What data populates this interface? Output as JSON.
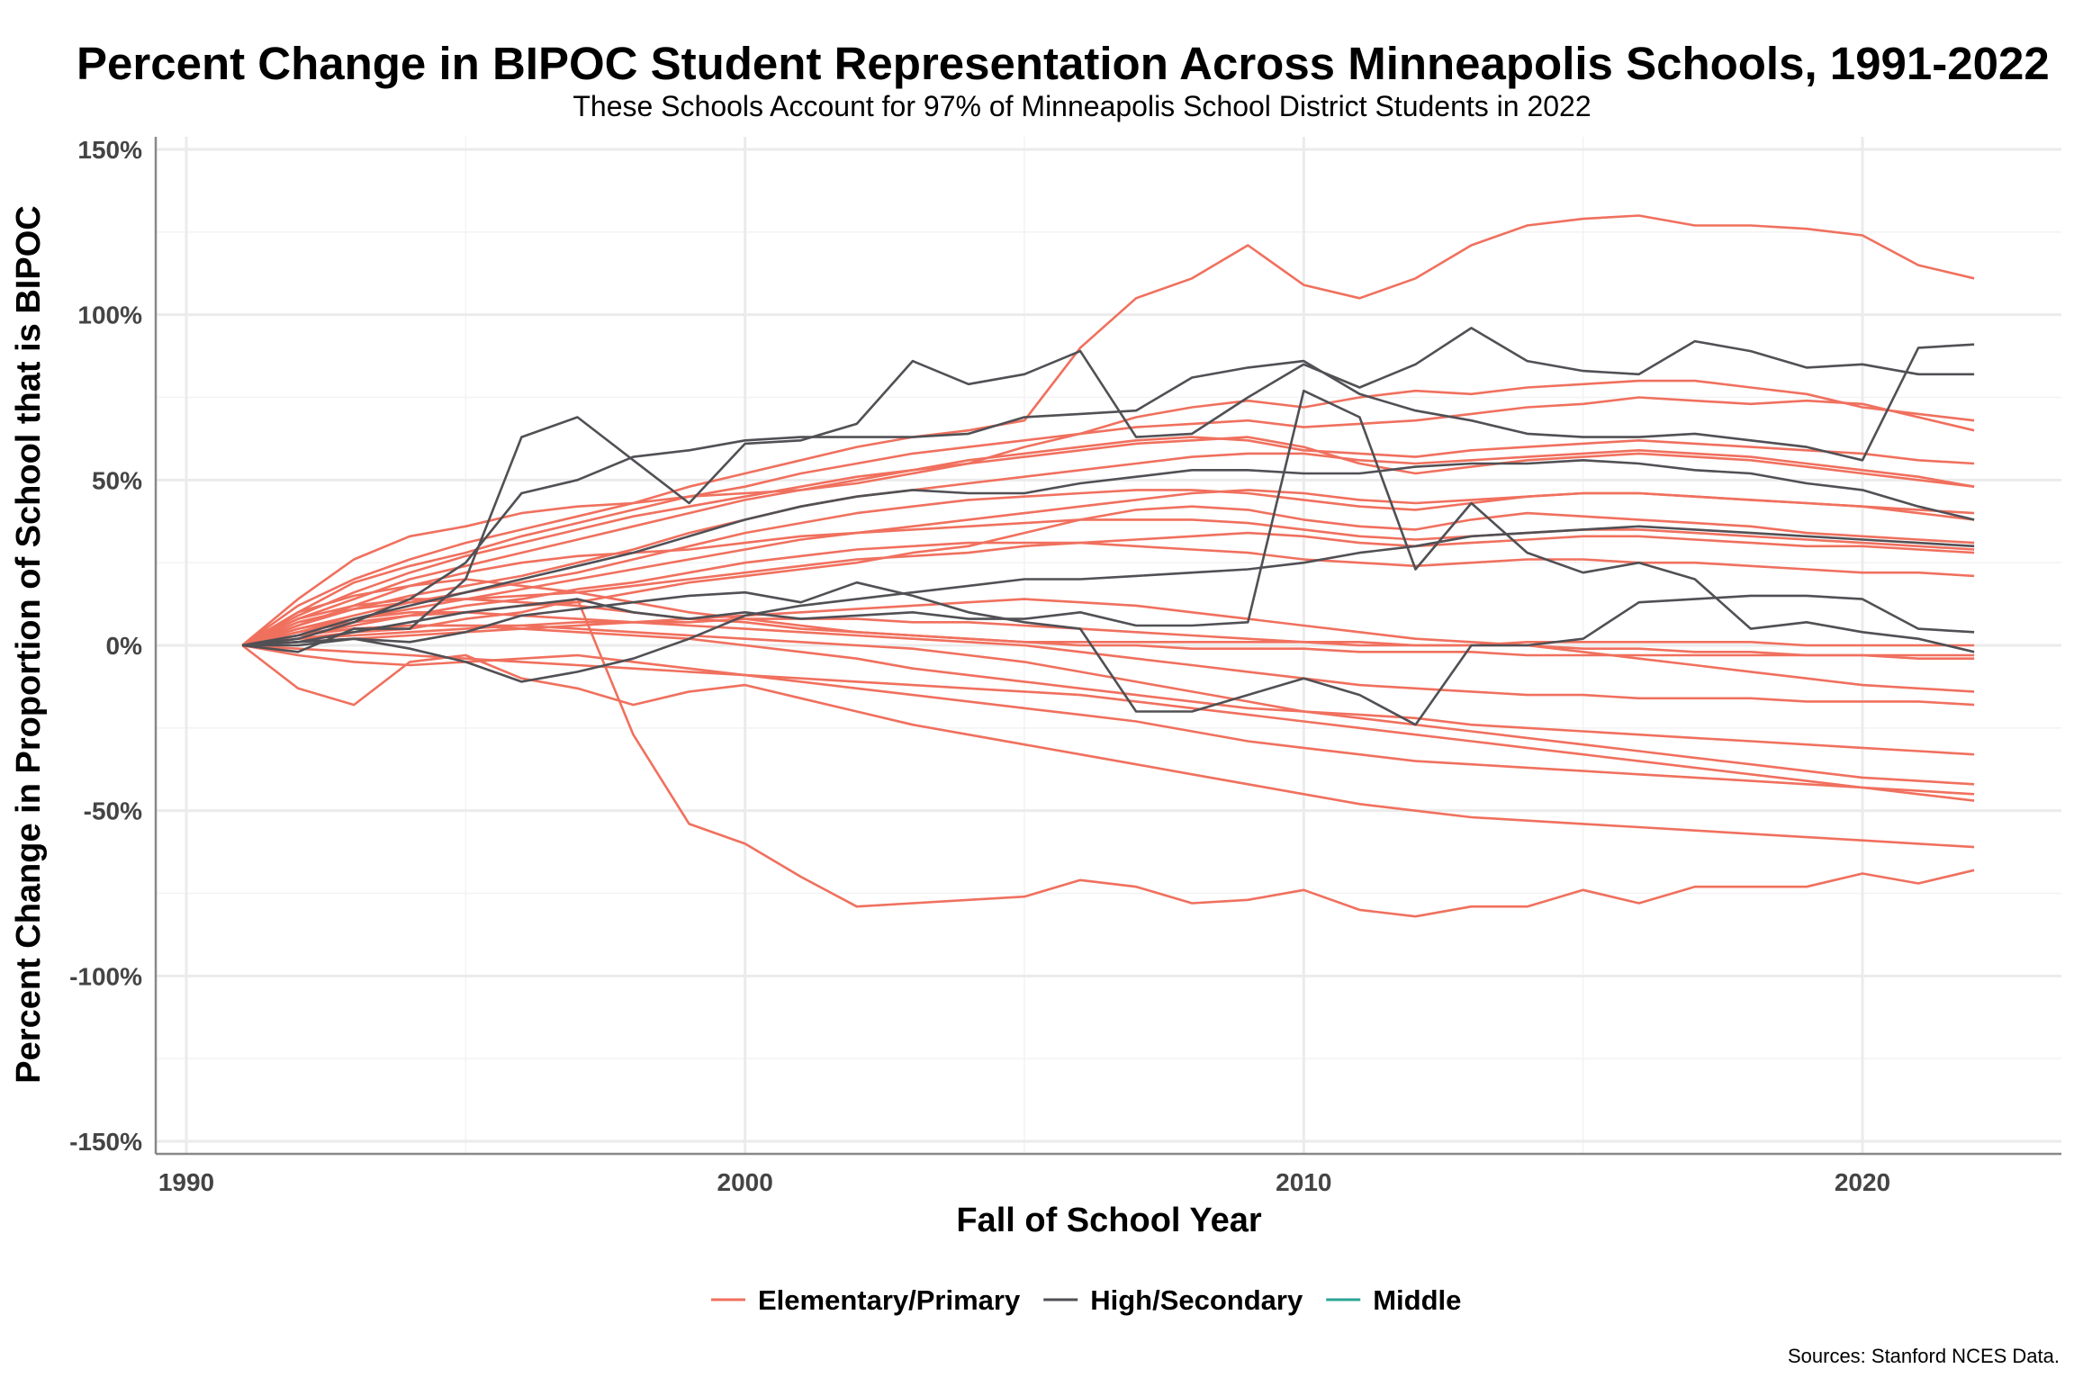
{
  "chart_data": {
    "type": "line",
    "title": "Percent Change in BIPOC Student Representation Across Minneapolis Schools, 1991-2022",
    "subtitle": "These Schools Account for 97% of Minneapolis School District Students in 2022",
    "xlabel": "Fall of School Year",
    "ylabel": "Percent Change in Proportion of School that is BIPOC",
    "caption": "Sources: Stanford NCES Data.",
    "xlim": [
      1990,
      2023
    ],
    "ylim": [
      -150,
      150
    ],
    "x_ticks": [
      1990,
      2000,
      2010,
      2020
    ],
    "x_tick_labels": [
      "1990",
      "2000",
      "2010",
      "2020"
    ],
    "y_ticks": [
      150,
      100,
      50,
      0,
      -50,
      -100,
      -150
    ],
    "y_tick_labels": [
      "150%",
      "100%",
      "50%",
      "0%",
      "-50%",
      "-100%",
      "-150%"
    ],
    "grid": true,
    "legend_position": "bottom",
    "categories": [
      {
        "name": "Elementary/Primary",
        "color": "#F0705E"
      },
      {
        "name": "High/Secondary",
        "color": "#505055"
      },
      {
        "name": "Middle",
        "color": "#2BA596"
      }
    ],
    "x": [
      1991,
      1992,
      1993,
      1994,
      1995,
      1996,
      1997,
      1998,
      1999,
      2000,
      2001,
      2002,
      2003,
      2004,
      2005,
      2006,
      2007,
      2008,
      2009,
      2010,
      2011,
      2012,
      2013,
      2014,
      2015,
      2016,
      2017,
      2018,
      2019,
      2020,
      2021,
      2022
    ],
    "series": [
      {
        "category": 0,
        "values": [
          0,
          12,
          20,
          26,
          31,
          35,
          39,
          43,
          48,
          52,
          56,
          60,
          63,
          65,
          68,
          90,
          105,
          111,
          121,
          109,
          105,
          111,
          121,
          127,
          129,
          130,
          127,
          127,
          126,
          124,
          115,
          111
        ]
      },
      {
        "category": 0,
        "values": [
          0,
          14,
          26,
          33,
          36,
          40,
          42,
          43,
          45,
          46,
          47,
          49,
          52,
          55,
          60,
          64,
          69,
          72,
          74,
          72,
          75,
          77,
          76,
          78,
          79,
          80,
          80,
          78,
          76,
          72,
          70,
          68
        ]
      },
      {
        "category": 0,
        "values": [
          0,
          10,
          19,
          24,
          28,
          33,
          37,
          41,
          45,
          48,
          52,
          55,
          58,
          60,
          62,
          64,
          66,
          67,
          68,
          66,
          67,
          68,
          70,
          72,
          73,
          75,
          74,
          73,
          74,
          73,
          69,
          65
        ]
      },
      {
        "category": 0,
        "values": [
          0,
          8,
          14,
          20,
          24,
          28,
          32,
          36,
          40,
          44,
          47,
          50,
          53,
          56,
          58,
          60,
          62,
          63,
          62,
          59,
          58,
          57,
          59,
          60,
          61,
          62,
          61,
          60,
          59,
          58,
          56,
          55
        ]
      },
      {
        "category": 0,
        "values": [
          0,
          6,
          11,
          15,
          18,
          21,
          25,
          29,
          34,
          38,
          42,
          45,
          47,
          49,
          51,
          53,
          55,
          57,
          58,
          58,
          56,
          55,
          56,
          57,
          58,
          59,
          58,
          57,
          55,
          53,
          51,
          48
        ]
      },
      {
        "category": 0,
        "values": [
          0,
          5,
          9,
          13,
          16,
          19,
          22,
          26,
          30,
          34,
          37,
          40,
          42,
          44,
          45,
          46,
          47,
          47,
          46,
          44,
          42,
          41,
          43,
          45,
          46,
          46,
          45,
          44,
          43,
          42,
          40,
          38
        ]
      },
      {
        "category": 0,
        "values": [
          0,
          4,
          8,
          11,
          14,
          17,
          20,
          23,
          26,
          29,
          32,
          34,
          35,
          36,
          37,
          38,
          38,
          38,
          37,
          35,
          33,
          32,
          33,
          34,
          35,
          35,
          34,
          33,
          32,
          31,
          30,
          29
        ]
      },
      {
        "category": 0,
        "values": [
          0,
          3,
          6,
          9,
          12,
          14,
          17,
          19,
          22,
          25,
          27,
          29,
          30,
          31,
          31,
          31,
          30,
          29,
          28,
          26,
          25,
          24,
          25,
          26,
          26,
          25,
          25,
          24,
          23,
          22,
          22,
          21
        ]
      },
      {
        "category": 0,
        "values": [
          0,
          10,
          15,
          18,
          20,
          18,
          16,
          13,
          10,
          8,
          6,
          4,
          3,
          2,
          1,
          1,
          1,
          1,
          1,
          1,
          0,
          0,
          0,
          1,
          1,
          1,
          1,
          1,
          0,
          0,
          0,
          0
        ]
      },
      {
        "category": 0,
        "values": [
          0,
          8,
          12,
          14,
          14,
          13,
          12,
          10,
          8,
          7,
          5,
          4,
          3,
          2,
          1,
          0,
          0,
          -1,
          -1,
          -1,
          -2,
          -2,
          -2,
          -3,
          -3,
          -3,
          -3,
          -3,
          -3,
          -3,
          -3,
          -3
        ]
      },
      {
        "category": 0,
        "values": [
          0,
          5,
          8,
          10,
          10,
          9,
          8,
          7,
          6,
          5,
          4,
          3,
          2,
          1,
          0,
          -2,
          -4,
          -6,
          -8,
          -10,
          -12,
          -13,
          -14,
          -15,
          -15,
          -16,
          -16,
          -16,
          -17,
          -17,
          -17,
          -18
        ]
      },
      {
        "category": 0,
        "values": [
          0,
          3,
          5,
          6,
          6,
          5,
          4,
          3,
          2,
          0,
          -2,
          -4,
          -7,
          -9,
          -11,
          -13,
          -15,
          -17,
          -19,
          -20,
          -21,
          -22,
          -24,
          -25,
          -26,
          -27,
          -28,
          -29,
          -30,
          -31,
          -32,
          -33
        ]
      },
      {
        "category": 0,
        "values": [
          0,
          -3,
          -5,
          -6,
          -5,
          -4,
          -3,
          -5,
          -7,
          -9,
          -11,
          -13,
          -15,
          -17,
          -19,
          -21,
          -23,
          -26,
          -29,
          -31,
          -33,
          -35,
          -36,
          -37,
          -38,
          -39,
          -40,
          -41,
          -42,
          -43,
          -44,
          -45
        ]
      },
      {
        "category": 0,
        "values": [
          0,
          -13,
          -18,
          -5,
          -3,
          -10,
          -13,
          -18,
          -14,
          -12,
          -16,
          -20,
          -24,
          -27,
          -30,
          -33,
          -36,
          -39,
          -42,
          -45,
          -48,
          -50,
          -52,
          -53,
          -54,
          -55,
          -56,
          -57,
          -58,
          -59,
          -60,
          -61
        ]
      },
      {
        "category": 0,
        "values": [
          0,
          2,
          4,
          5,
          8,
          10,
          14,
          -27,
          -54,
          -60,
          -70,
          -79,
          -78,
          -77,
          -76,
          -71,
          -73,
          -78,
          -77,
          -74,
          -80,
          -82,
          -79,
          -79,
          -74,
          -78,
          -73,
          -73,
          -73,
          -69,
          -72,
          -68
        ]
      },
      {
        "category": 0,
        "values": [
          0,
          4,
          7,
          9,
          10,
          12,
          13,
          16,
          19,
          21,
          23,
          25,
          28,
          30,
          34,
          38,
          41,
          42,
          41,
          38,
          36,
          35,
          38,
          40,
          39,
          38,
          37,
          36,
          34,
          33,
          32,
          31
        ]
      },
      {
        "category": 0,
        "values": [
          0,
          6,
          12,
          18,
          22,
          25,
          27,
          28,
          29,
          31,
          33,
          34,
          36,
          38,
          40,
          42,
          44,
          46,
          47,
          46,
          44,
          43,
          44,
          45,
          46,
          46,
          45,
          44,
          43,
          42,
          41,
          40
        ]
      },
      {
        "category": 0,
        "values": [
          0,
          2,
          3,
          4,
          5,
          6,
          7,
          7,
          8,
          9,
          10,
          11,
          12,
          13,
          14,
          13,
          12,
          10,
          8,
          6,
          4,
          2,
          1,
          0,
          -2,
          -4,
          -6,
          -8,
          -10,
          -12,
          -13,
          -14
        ]
      },
      {
        "category": 0,
        "values": [
          0,
          -1,
          -2,
          -3,
          -4,
          -5,
          -6,
          -7,
          -8,
          -9,
          -10,
          -11,
          -12,
          -13,
          -14,
          -15,
          -17,
          -19,
          -21,
          -23,
          -25,
          -27,
          -29,
          -31,
          -33,
          -35,
          -37,
          -39,
          -41,
          -43,
          -45,
          -47
        ]
      },
      {
        "category": 0,
        "values": [
          0,
          1,
          2,
          3,
          4,
          5,
          6,
          7,
          7,
          8,
          8,
          8,
          7,
          7,
          6,
          5,
          4,
          3,
          2,
          1,
          1,
          0,
          0,
          0,
          -1,
          -1,
          -2,
          -2,
          -3,
          -3,
          -4,
          -4
        ]
      },
      {
        "category": 0,
        "values": [
          0,
          7,
          11,
          13,
          14,
          15,
          16,
          18,
          20,
          22,
          24,
          26,
          27,
          28,
          30,
          31,
          32,
          33,
          34,
          33,
          31,
          30,
          31,
          32,
          33,
          33,
          32,
          31,
          30,
          30,
          29,
          28
        ]
      },
      {
        "category": 0,
        "values": [
          0,
          9,
          16,
          22,
          27,
          31,
          35,
          39,
          42,
          45,
          48,
          51,
          53,
          55,
          57,
          59,
          61,
          62,
          63,
          60,
          55,
          52,
          54,
          56,
          57,
          58,
          57,
          56,
          54,
          52,
          50,
          48
        ]
      },
      {
        "category": 0,
        "values": [
          0,
          3,
          5,
          6,
          6,
          6,
          5,
          4,
          3,
          2,
          1,
          0,
          -1,
          -3,
          -5,
          -8,
          -11,
          -14,
          -17,
          -20,
          -22,
          -24,
          -26,
          -28,
          -30,
          -32,
          -34,
          -36,
          -38,
          -40,
          -41,
          -42
        ]
      },
      {
        "category": 1,
        "values": [
          0,
          -2,
          5,
          5,
          20,
          63,
          69,
          56,
          43,
          61,
          62,
          67,
          86,
          79,
          82,
          89,
          63,
          64,
          75,
          85,
          78,
          85,
          96,
          86,
          83,
          82,
          92,
          89,
          84,
          85,
          82,
          82
        ]
      },
      {
        "category": 1,
        "values": [
          0,
          2,
          7,
          14,
          25,
          46,
          50,
          57,
          59,
          62,
          63,
          63,
          63,
          64,
          69,
          70,
          71,
          81,
          84,
          86,
          76,
          71,
          68,
          64,
          63,
          63,
          64,
          62,
          60,
          56,
          90,
          91
        ]
      },
      {
        "category": 1,
        "values": [
          0,
          1,
          2,
          -1,
          -5,
          -11,
          -8,
          -4,
          2,
          9,
          12,
          14,
          16,
          18,
          20,
          20,
          21,
          22,
          23,
          25,
          28,
          30,
          33,
          34,
          35,
          36,
          35,
          34,
          33,
          32,
          31,
          30
        ]
      },
      {
        "category": 1,
        "values": [
          0,
          0,
          2,
          1,
          4,
          9,
          11,
          13,
          15,
          16,
          13,
          19,
          15,
          10,
          7,
          5,
          -20,
          -20,
          -15,
          -10,
          -15,
          -24,
          0,
          0,
          2,
          13,
          14,
          15,
          15,
          14,
          5,
          4
        ]
      },
      {
        "category": 1,
        "values": [
          0,
          3,
          8,
          12,
          16,
          20,
          24,
          28,
          33,
          38,
          42,
          45,
          47,
          46,
          46,
          49,
          51,
          53,
          53,
          52,
          52,
          54,
          55,
          55,
          56,
          55,
          53,
          52,
          49,
          47,
          42,
          38
        ]
      },
      {
        "category": 1,
        "values": [
          0,
          1,
          4,
          7,
          10,
          12,
          14,
          10,
          8,
          10,
          8,
          9,
          10,
          8,
          8,
          10,
          6,
          6,
          7,
          77,
          69,
          23,
          43,
          28,
          22,
          25,
          20,
          5,
          7,
          4,
          2,
          -2
        ]
      }
    ]
  }
}
